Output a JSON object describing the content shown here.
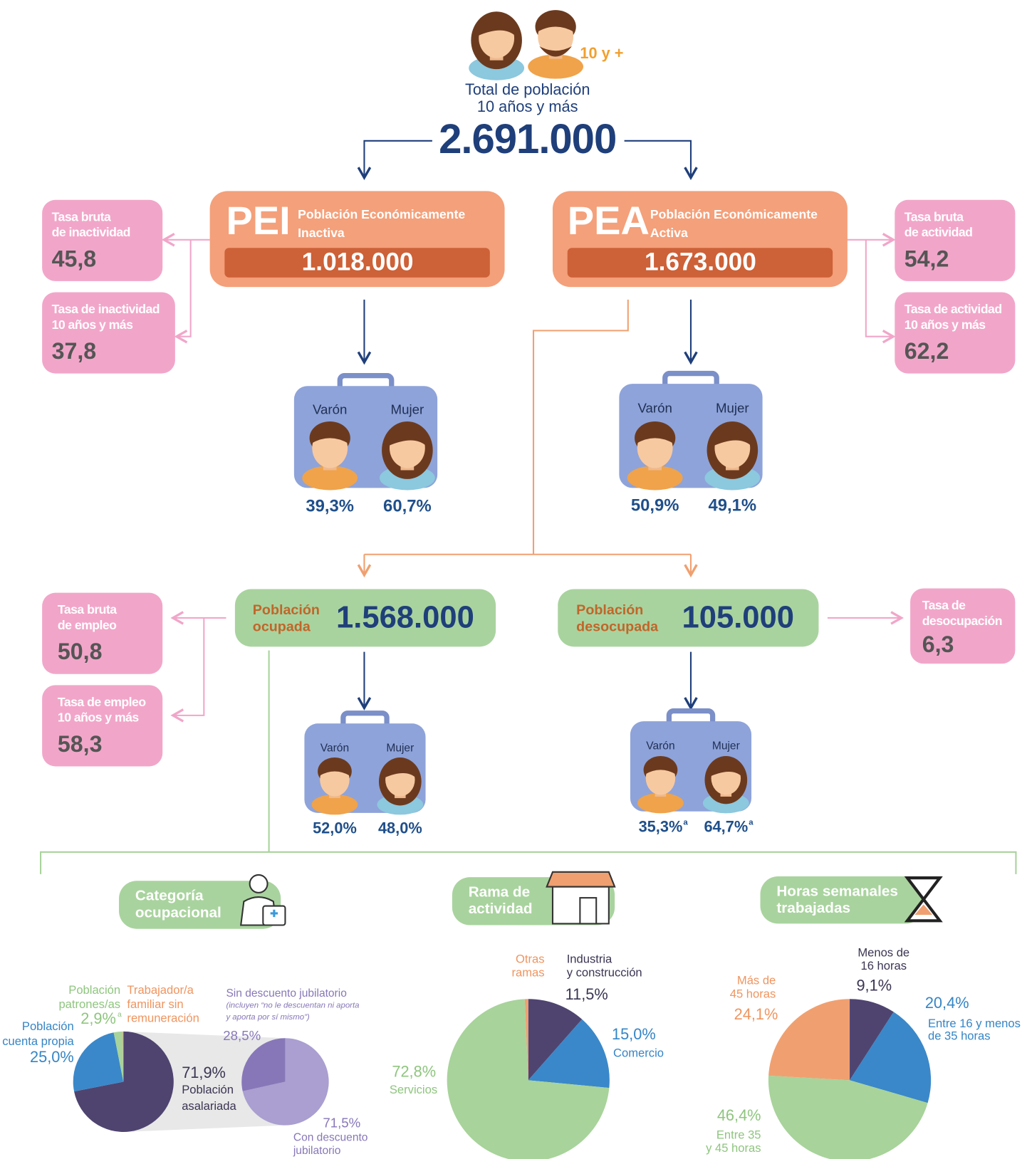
{
  "header": {
    "badge": "10 y +",
    "title": [
      "Total de población",
      "10 años y más"
    ],
    "total": "2.691.000"
  },
  "pei": {
    "abbr": "PEI",
    "name": [
      "Población Económicamente",
      "Inactiva"
    ],
    "value": "1.018.000",
    "sex": {
      "labels": [
        "Varón",
        "Mujer"
      ],
      "values": [
        "39,3%",
        "60,7%"
      ]
    }
  },
  "pea": {
    "abbr": "PEA",
    "name": [
      "Población Económicamente",
      "Activa"
    ],
    "value": "1.673.000",
    "sex": {
      "labels": [
        "Varón",
        "Mujer"
      ],
      "values": [
        "50,9%",
        "49,1%"
      ]
    }
  },
  "ocupada": {
    "name": [
      "Población",
      "ocupada"
    ],
    "value": "1.568.000",
    "sex": {
      "labels": [
        "Varón",
        "Mujer"
      ],
      "values": [
        "52,0%",
        "48,0%"
      ]
    }
  },
  "desocupada": {
    "name": [
      "Población",
      "desocupada"
    ],
    "value": "105.000",
    "sex": {
      "labels": [
        "Varón",
        "Mujer"
      ],
      "values": [
        "35,3%",
        "64,7%"
      ],
      "note_marks": [
        "a",
        "a"
      ]
    }
  },
  "rates": [
    {
      "label": [
        "Tasa bruta",
        "de inactividad"
      ],
      "value": "45,8"
    },
    {
      "label": [
        "Tasa de inactividad",
        "10 años y más"
      ],
      "value": "37,8"
    },
    {
      "label": [
        "Tasa bruta",
        "de actividad"
      ],
      "value": "54,2"
    },
    {
      "label": [
        "Tasa de actividad",
        "10 años y más"
      ],
      "value": "62,2"
    },
    {
      "label": [
        "Tasa bruta",
        "de empleo"
      ],
      "value": "50,8"
    },
    {
      "label": [
        "Tasa de empleo",
        "10 años y más"
      ],
      "value": "58,3"
    },
    {
      "label": [
        "Tasa de",
        "desocupación"
      ],
      "value": "6,3"
    }
  ],
  "chart_data": [
    {
      "type": "pie",
      "title": [
        "Categoría",
        "ocupacional"
      ],
      "categories": [
        [
          "Población",
          "asalariada"
        ],
        [
          "Población",
          "cuenta propia"
        ],
        [
          "Población",
          "patrones/as"
        ],
        [
          "Trabajador/a",
          "familiar sin",
          "remuneración"
        ]
      ],
      "values": [
        71.9,
        25.0,
        2.9,
        0.2
      ],
      "value_labels": [
        "71,9%",
        "25,0%",
        "2,9%",
        null
      ],
      "note_marks": [
        null,
        null,
        "a",
        null
      ],
      "colors": [
        "#4f4470",
        "#3a88c9",
        "#a8d39b",
        "#f0a070"
      ]
    },
    {
      "type": "pie",
      "categories": [
        [
          "Con descuento",
          "jubilatorio"
        ],
        [
          "Sin descuento jubilatorio",
          "(incluyen “no le descuentan ni aporta",
          "y aporta por sí mismo”)"
        ]
      ],
      "values": [
        71.5,
        28.5
      ],
      "value_labels": [
        "71,5%",
        "28,5%"
      ],
      "colors": [
        "#aa9fd0",
        "#8777b8"
      ]
    },
    {
      "type": "pie",
      "title": [
        "Rama de",
        "actividad"
      ],
      "categories": [
        [
          "Industria",
          "y construcción"
        ],
        [
          "Comercio"
        ],
        [
          "Servicios"
        ],
        [
          "Otras",
          "ramas"
        ]
      ],
      "values": [
        11.5,
        15.0,
        72.8,
        0.7
      ],
      "value_labels": [
        "11,5%",
        "15,0%",
        "72,8%",
        null
      ],
      "colors": [
        "#4f4470",
        "#3a88c9",
        "#a8d39b",
        "#f0a070"
      ]
    },
    {
      "type": "pie",
      "title": [
        "Horas semanales",
        "trabajadas"
      ],
      "categories": [
        [
          "Menos de",
          "16 horas"
        ],
        [
          "Entre 16 y menos",
          "de 35 horas"
        ],
        [
          "Entre 35",
          "y 45 horas"
        ],
        [
          "Más de",
          "45 horas"
        ]
      ],
      "values": [
        9.1,
        20.4,
        46.4,
        24.1
      ],
      "value_labels": [
        "9,1%",
        "20,4%",
        "46,4%",
        "24,1%"
      ],
      "colors": [
        "#4f4470",
        "#3a88c9",
        "#a8d39b",
        "#f0a070"
      ]
    }
  ]
}
